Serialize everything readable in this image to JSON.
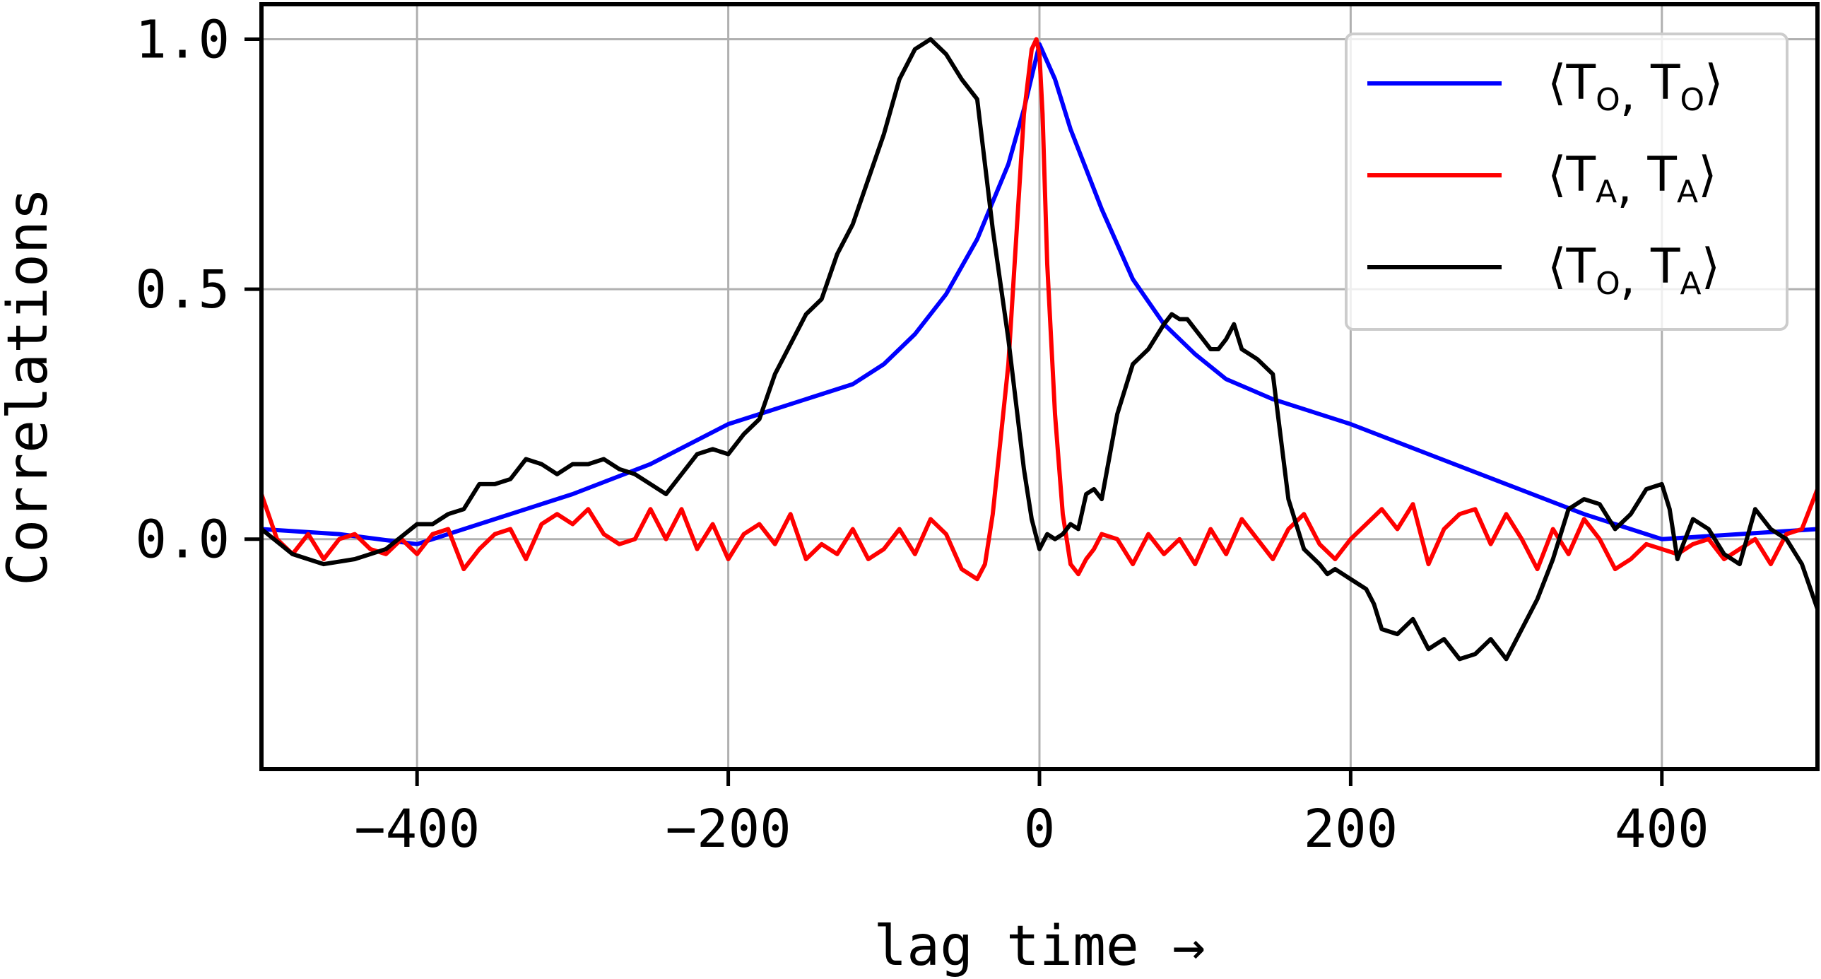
{
  "chart_data": {
    "type": "line",
    "title": "",
    "xlabel": "lag time →",
    "ylabel": "Correlations",
    "xlim": [
      -500,
      500
    ],
    "ylim": [
      -0.46,
      1.07
    ],
    "grid": true,
    "legend_position": "top-right",
    "x_ticks": [
      {
        "value": -400,
        "label": "−400"
      },
      {
        "value": -200,
        "label": "−200"
      },
      {
        "value": 0,
        "label": "0"
      },
      {
        "value": 200,
        "label": "200"
      },
      {
        "value": 400,
        "label": "400"
      }
    ],
    "y_ticks": [
      {
        "value": 0.0,
        "label": "0.0"
      },
      {
        "value": 0.5,
        "label": "0.5"
      },
      {
        "value": 1.0,
        "label": "1.0"
      }
    ],
    "series": [
      {
        "key": "TO_TO",
        "legend": {
          "base1": "T",
          "sub1": "O",
          "base2": "T",
          "sub2": "O"
        },
        "color": "#0000ff",
        "x": [
          -500,
          -450,
          -400,
          -350,
          -300,
          -250,
          -200,
          -150,
          -120,
          -100,
          -80,
          -60,
          -40,
          -20,
          -10,
          0,
          10,
          20,
          30,
          40,
          60,
          80,
          100,
          120,
          150,
          200,
          250,
          300,
          350,
          400,
          450,
          500
        ],
        "y": [
          0.02,
          0.01,
          -0.01,
          0.04,
          0.09,
          0.15,
          0.23,
          0.28,
          0.31,
          0.35,
          0.41,
          0.49,
          0.6,
          0.75,
          0.86,
          0.99,
          0.92,
          0.82,
          0.74,
          0.66,
          0.52,
          0.43,
          0.37,
          0.32,
          0.28,
          0.23,
          0.17,
          0.11,
          0.05,
          0.0,
          0.01,
          0.02
        ]
      },
      {
        "key": "TA_TA",
        "legend": {
          "base1": "T",
          "sub1": "A",
          "base2": "T",
          "sub2": "A"
        },
        "color": "#ff0000",
        "x": [
          -500,
          -490,
          -480,
          -470,
          -460,
          -450,
          -440,
          -430,
          -420,
          -410,
          -400,
          -390,
          -380,
          -370,
          -360,
          -350,
          -340,
          -330,
          -320,
          -310,
          -300,
          -290,
          -280,
          -270,
          -260,
          -250,
          -240,
          -230,
          -220,
          -210,
          -200,
          -190,
          -180,
          -170,
          -160,
          -150,
          -140,
          -130,
          -120,
          -110,
          -100,
          -90,
          -80,
          -70,
          -60,
          -50,
          -40,
          -35,
          -30,
          -25,
          -20,
          -15,
          -10,
          -5,
          -2,
          0,
          2,
          5,
          10,
          15,
          20,
          25,
          30,
          35,
          40,
          50,
          60,
          70,
          80,
          90,
          100,
          110,
          120,
          130,
          140,
          150,
          160,
          170,
          180,
          190,
          200,
          210,
          220,
          230,
          240,
          250,
          260,
          270,
          280,
          290,
          300,
          310,
          320,
          330,
          340,
          350,
          360,
          370,
          380,
          390,
          400,
          410,
          420,
          430,
          440,
          450,
          460,
          470,
          480,
          490,
          500
        ],
        "y": [
          0.09,
          0.0,
          -0.03,
          0.01,
          -0.04,
          0.0,
          0.01,
          -0.02,
          -0.03,
          0.0,
          -0.03,
          0.01,
          0.02,
          -0.06,
          -0.02,
          0.01,
          0.02,
          -0.04,
          0.03,
          0.05,
          0.03,
          0.06,
          0.01,
          -0.01,
          0.0,
          0.06,
          0.0,
          0.06,
          -0.02,
          0.03,
          -0.04,
          0.01,
          0.03,
          -0.01,
          0.05,
          -0.04,
          -0.01,
          -0.03,
          0.02,
          -0.04,
          -0.02,
          0.02,
          -0.03,
          0.04,
          0.01,
          -0.06,
          -0.08,
          -0.05,
          0.05,
          0.2,
          0.35,
          0.6,
          0.85,
          0.98,
          1.0,
          0.97,
          0.85,
          0.55,
          0.25,
          0.05,
          -0.05,
          -0.07,
          -0.04,
          -0.02,
          0.01,
          0.0,
          -0.05,
          0.01,
          -0.03,
          0.0,
          -0.05,
          0.02,
          -0.03,
          0.04,
          0.0,
          -0.04,
          0.02,
          0.05,
          -0.01,
          -0.04,
          0.0,
          0.03,
          0.06,
          0.02,
          0.07,
          -0.05,
          0.02,
          0.05,
          0.06,
          -0.01,
          0.05,
          0.0,
          -0.06,
          0.02,
          -0.03,
          0.04,
          0.0,
          -0.06,
          -0.04,
          -0.01,
          -0.02,
          -0.03,
          -0.01,
          0.0,
          -0.04,
          -0.02,
          0.0,
          -0.05,
          0.01,
          0.02,
          0.1
        ]
      },
      {
        "key": "TO_TA",
        "legend": {
          "base1": "T",
          "sub1": "O",
          "base2": "T",
          "sub2": "A"
        },
        "color": "#000000",
        "x": [
          -500,
          -480,
          -460,
          -440,
          -420,
          -400,
          -390,
          -380,
          -370,
          -360,
          -350,
          -340,
          -330,
          -320,
          -310,
          -300,
          -290,
          -280,
          -270,
          -260,
          -250,
          -240,
          -230,
          -220,
          -210,
          -200,
          -190,
          -180,
          -170,
          -160,
          -150,
          -140,
          -130,
          -120,
          -110,
          -100,
          -90,
          -80,
          -70,
          -60,
          -50,
          -40,
          -30,
          -20,
          -15,
          -10,
          -5,
          0,
          5,
          10,
          15,
          20,
          25,
          30,
          35,
          40,
          50,
          60,
          70,
          80,
          85,
          90,
          95,
          100,
          105,
          110,
          115,
          120,
          125,
          130,
          135,
          140,
          150,
          160,
          170,
          180,
          185,
          190,
          200,
          210,
          215,
          220,
          230,
          240,
          250,
          260,
          270,
          280,
          290,
          300,
          310,
          320,
          330,
          340,
          350,
          360,
          370,
          380,
          390,
          400,
          405,
          410,
          420,
          430,
          440,
          450,
          460,
          470,
          480,
          490,
          500
        ],
        "y": [
          0.02,
          -0.03,
          -0.05,
          -0.04,
          -0.02,
          0.03,
          0.03,
          0.05,
          0.06,
          0.11,
          0.11,
          0.12,
          0.16,
          0.15,
          0.13,
          0.15,
          0.15,
          0.16,
          0.14,
          0.13,
          0.11,
          0.09,
          0.13,
          0.17,
          0.18,
          0.17,
          0.21,
          0.24,
          0.33,
          0.39,
          0.45,
          0.48,
          0.57,
          0.63,
          0.72,
          0.81,
          0.92,
          0.98,
          1.0,
          0.97,
          0.92,
          0.88,
          0.62,
          0.4,
          0.27,
          0.14,
          0.04,
          -0.02,
          0.01,
          0.0,
          0.01,
          0.03,
          0.02,
          0.09,
          0.1,
          0.08,
          0.25,
          0.35,
          0.38,
          0.43,
          0.45,
          0.44,
          0.44,
          0.42,
          0.4,
          0.38,
          0.38,
          0.4,
          0.43,
          0.38,
          0.37,
          0.36,
          0.33,
          0.08,
          -0.02,
          -0.05,
          -0.07,
          -0.06,
          -0.08,
          -0.1,
          -0.13,
          -0.18,
          -0.19,
          -0.16,
          -0.22,
          -0.2,
          -0.24,
          -0.23,
          -0.2,
          -0.24,
          -0.18,
          -0.12,
          -0.04,
          0.06,
          0.08,
          0.07,
          0.02,
          0.05,
          0.1,
          0.11,
          0.06,
          -0.04,
          0.04,
          0.02,
          -0.03,
          -0.05,
          0.06,
          0.02,
          0.0,
          -0.05,
          -0.14
        ]
      }
    ]
  }
}
